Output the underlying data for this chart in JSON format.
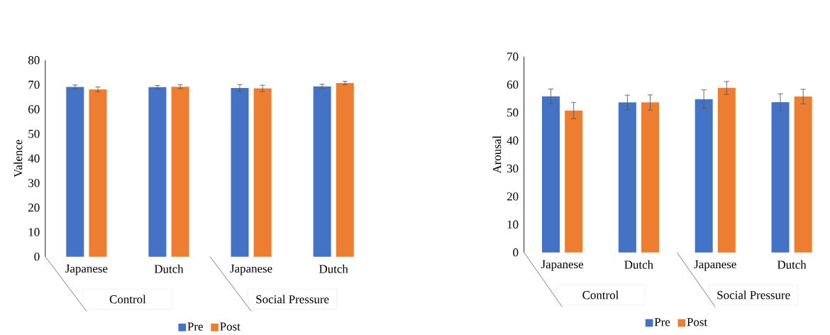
{
  "chart_data": [
    {
      "type": "bar",
      "ylabel": "Valence",
      "categories": [
        "Japanese",
        "Dutch",
        "Japanese",
        "Dutch"
      ],
      "ylim": [
        0,
        80
      ],
      "yticks": [
        0,
        10,
        20,
        30,
        40,
        50,
        60,
        70,
        80
      ],
      "legend": "bottom",
      "annotations": [
        "Control",
        "Social Pressure"
      ],
      "series": [
        {
          "name": "Pre",
          "color": "#4472c4",
          "values": [
            69.1,
            69.0,
            68.7,
            69.3
          ],
          "errors": [
            0.8,
            0.7,
            1.4,
            0.9
          ]
        },
        {
          "name": "Post",
          "color": "#ed7d31",
          "values": [
            68.1,
            69.2,
            68.5,
            70.7
          ],
          "errors": [
            1.0,
            0.8,
            1.3,
            0.7
          ]
        }
      ]
    },
    {
      "type": "bar",
      "ylabel": "Arousal",
      "categories": [
        "Japanese",
        "Dutch",
        "Japanese",
        "Dutch"
      ],
      "ylim": [
        0,
        70
      ],
      "yticks": [
        0,
        10,
        20,
        30,
        40,
        50,
        60,
        70
      ],
      "legend": "bottom",
      "annotations": [
        "Control",
        "Social Pressure"
      ],
      "series": [
        {
          "name": "Pre",
          "color": "#4472c4",
          "values": [
            55.8,
            53.6,
            54.8,
            53.7
          ],
          "errors": [
            2.6,
            2.6,
            3.3,
            3.0
          ]
        },
        {
          "name": "Post",
          "color": "#ed7d31",
          "values": [
            50.7,
            53.6,
            58.8,
            55.7
          ],
          "errors": [
            2.9,
            2.7,
            2.3,
            2.6
          ]
        }
      ]
    }
  ]
}
